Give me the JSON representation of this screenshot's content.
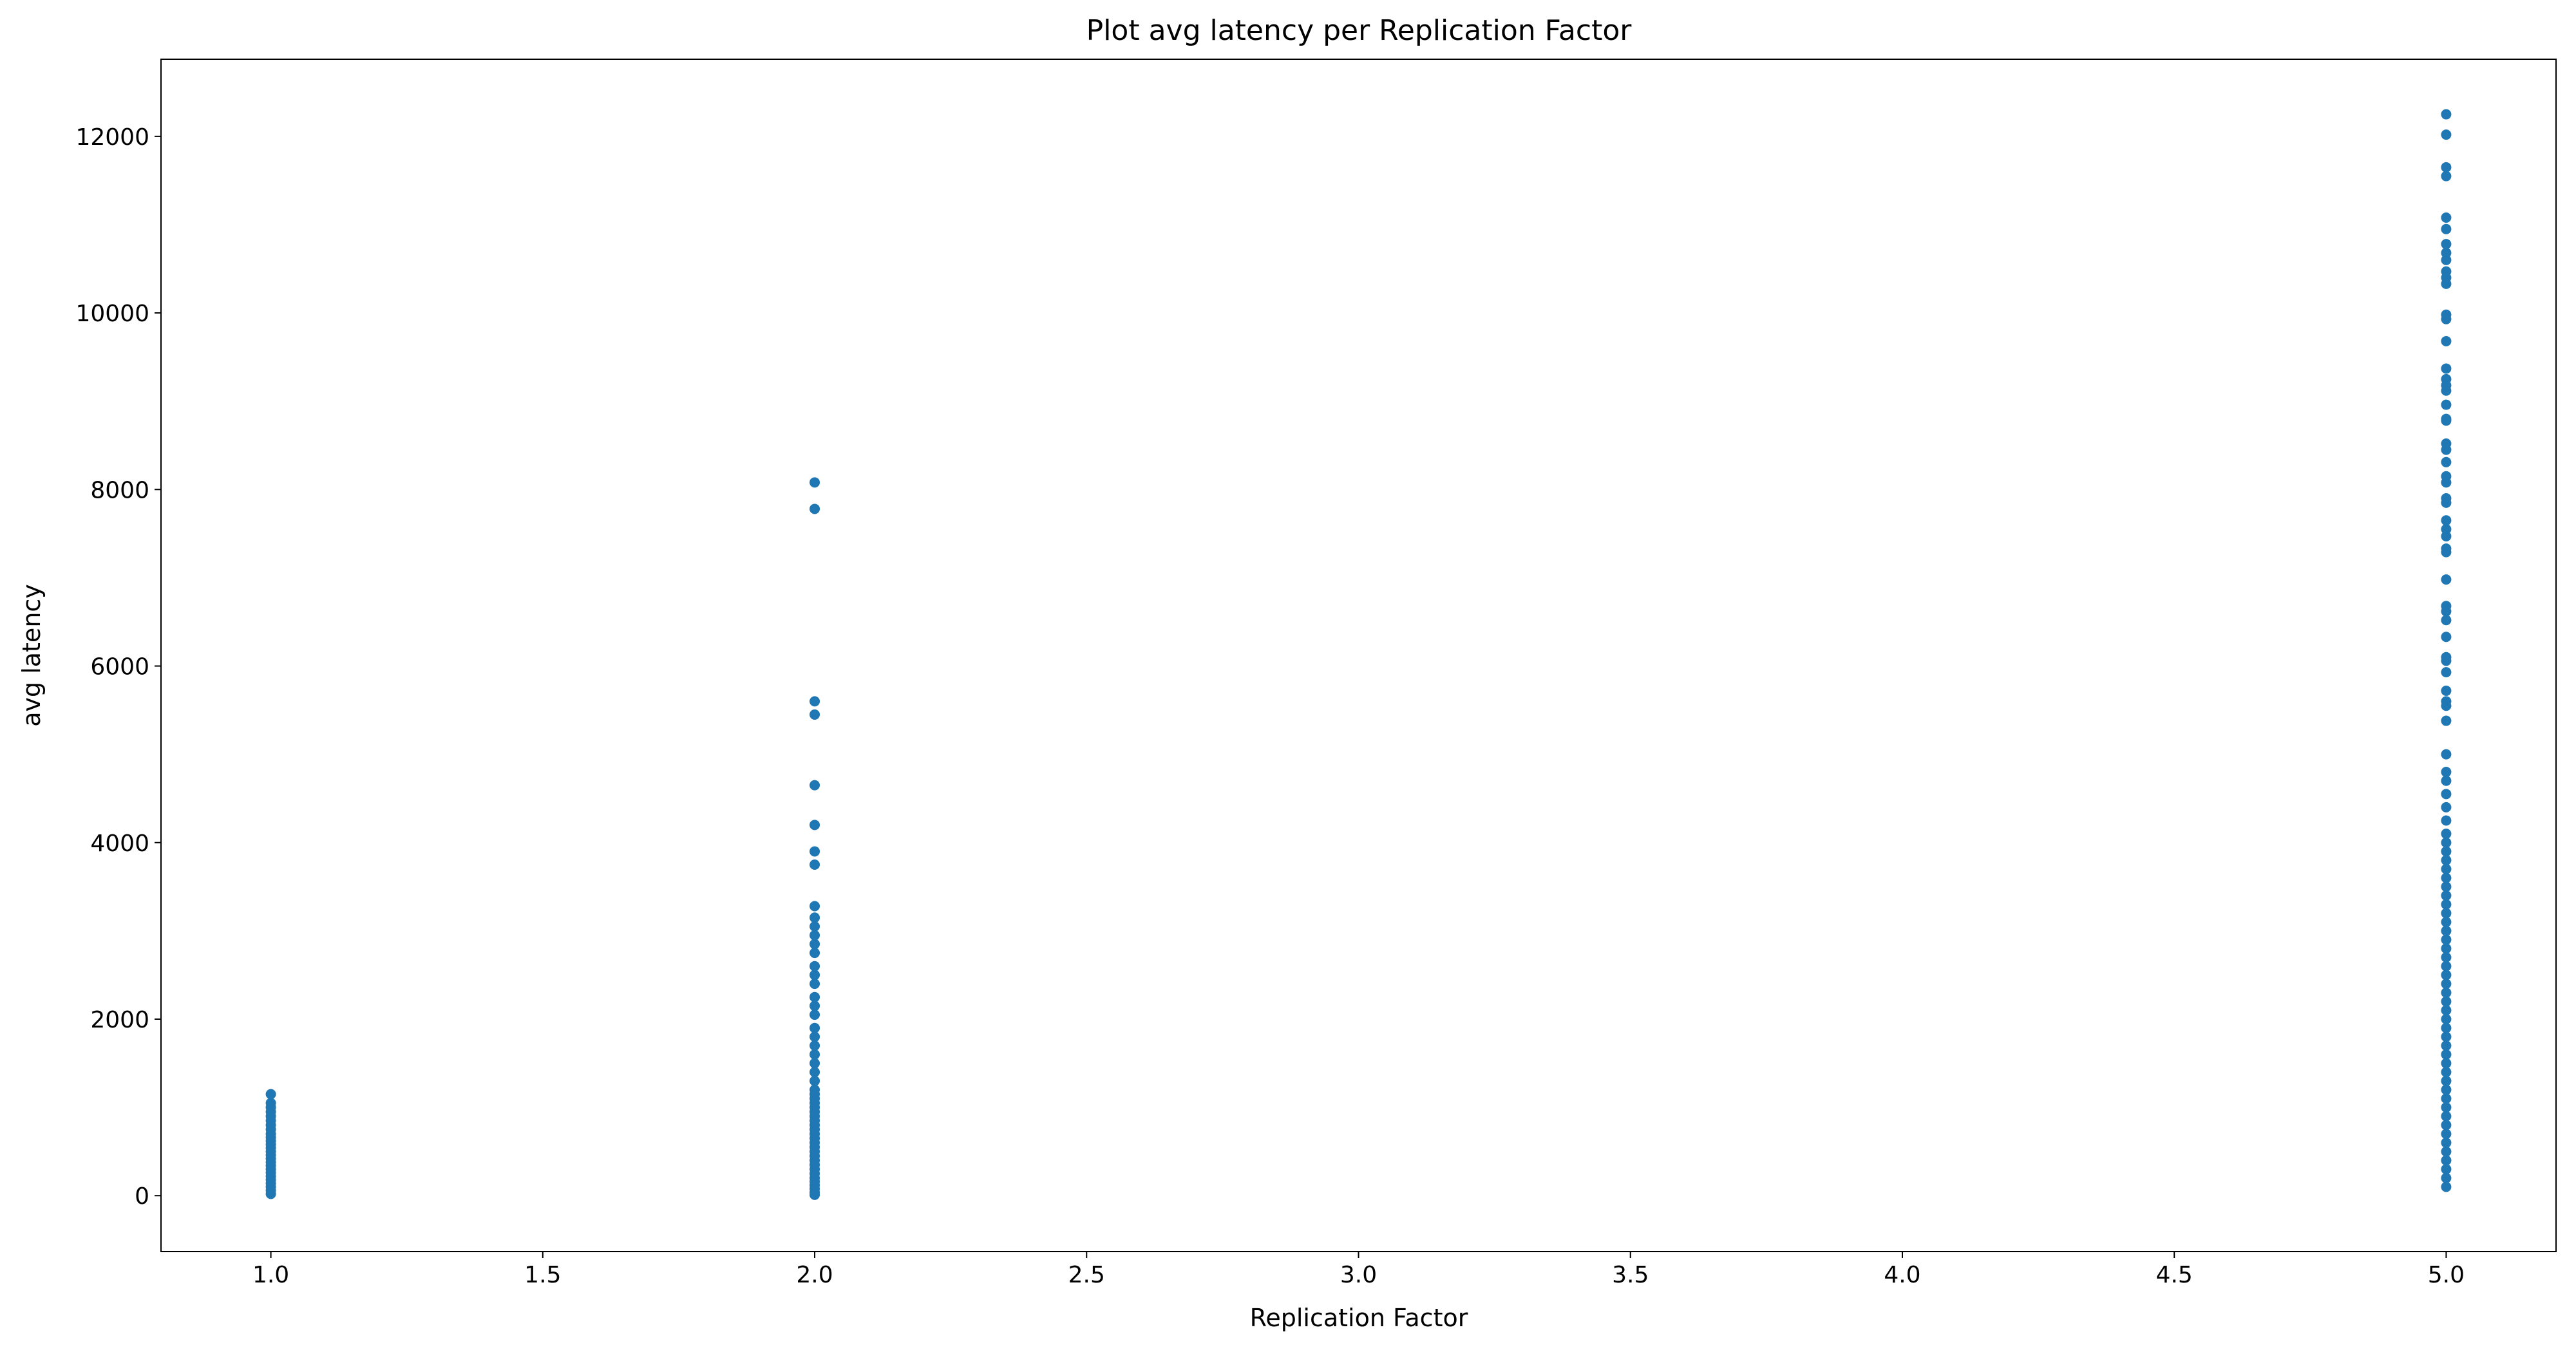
{
  "chart_data": {
    "type": "scatter",
    "title": "Plot avg latency per Replication Factor",
    "x_label": "Replication Factor",
    "y_label": "avg latency",
    "color": "#1f77b4",
    "xlim": [
      0.798,
      5.202
    ],
    "ylim": [
      -633,
      12874
    ],
    "xticks": [
      {
        "value": 1,
        "label": "1.0"
      },
      {
        "value": 1.5,
        "label": "1.5"
      },
      {
        "value": 2,
        "label": "2.0"
      },
      {
        "value": 2.5,
        "label": "2.5"
      },
      {
        "value": 3,
        "label": "3.0"
      },
      {
        "value": 3.5,
        "label": "3.5"
      },
      {
        "value": 4,
        "label": "4.0"
      },
      {
        "value": 4.5,
        "label": "4.5"
      },
      {
        "value": 5,
        "label": "5.0"
      }
    ],
    "yticks": [
      0,
      2000,
      4000,
      6000,
      8000,
      10000,
      12000
    ],
    "grid": false,
    "points": [
      [
        1,
        20
      ],
      [
        1,
        60
      ],
      [
        1,
        100
      ],
      [
        1,
        140
      ],
      [
        1,
        180
      ],
      [
        1,
        220
      ],
      [
        1,
        260
      ],
      [
        1,
        300
      ],
      [
        1,
        340
      ],
      [
        1,
        380
      ],
      [
        1,
        420
      ],
      [
        1,
        460
      ],
      [
        1,
        500
      ],
      [
        1,
        540
      ],
      [
        1,
        580
      ],
      [
        1,
        620
      ],
      [
        1,
        660
      ],
      [
        1,
        700
      ],
      [
        1,
        750
      ],
      [
        1,
        800
      ],
      [
        1,
        850
      ],
      [
        1,
        900
      ],
      [
        1,
        950
      ],
      [
        1,
        1000
      ],
      [
        1,
        1050
      ],
      [
        1,
        1150
      ],
      [
        2,
        10
      ],
      [
        2,
        40
      ],
      [
        2,
        80
      ],
      [
        2,
        120
      ],
      [
        2,
        160
      ],
      [
        2,
        200
      ],
      [
        2,
        250
      ],
      [
        2,
        300
      ],
      [
        2,
        350
      ],
      [
        2,
        400
      ],
      [
        2,
        450
      ],
      [
        2,
        500
      ],
      [
        2,
        550
      ],
      [
        2,
        600
      ],
      [
        2,
        650
      ],
      [
        2,
        700
      ],
      [
        2,
        750
      ],
      [
        2,
        800
      ],
      [
        2,
        850
      ],
      [
        2,
        900
      ],
      [
        2,
        950
      ],
      [
        2,
        1000
      ],
      [
        2,
        1050
      ],
      [
        2,
        1100
      ],
      [
        2,
        1150
      ],
      [
        2,
        1200
      ],
      [
        2,
        1300
      ],
      [
        2,
        1400
      ],
      [
        2,
        1500
      ],
      [
        2,
        1600
      ],
      [
        2,
        1700
      ],
      [
        2,
        1800
      ],
      [
        2,
        1900
      ],
      [
        2,
        2050
      ],
      [
        2,
        2150
      ],
      [
        2,
        2250
      ],
      [
        2,
        2400
      ],
      [
        2,
        2500
      ],
      [
        2,
        2600
      ],
      [
        2,
        2750
      ],
      [
        2,
        2850
      ],
      [
        2,
        2950
      ],
      [
        2,
        3050
      ],
      [
        2,
        3150
      ],
      [
        2,
        3280
      ],
      [
        2,
        3750
      ],
      [
        2,
        3900
      ],
      [
        2,
        4200
      ],
      [
        2,
        4650
      ],
      [
        2,
        5450
      ],
      [
        2,
        5600
      ],
      [
        2,
        7780
      ],
      [
        2,
        8080
      ],
      [
        5,
        100
      ],
      [
        5,
        200
      ],
      [
        5,
        300
      ],
      [
        5,
        400
      ],
      [
        5,
        500
      ],
      [
        5,
        600
      ],
      [
        5,
        700
      ],
      [
        5,
        800
      ],
      [
        5,
        900
      ],
      [
        5,
        1000
      ],
      [
        5,
        1100
      ],
      [
        5,
        1200
      ],
      [
        5,
        1300
      ],
      [
        5,
        1400
      ],
      [
        5,
        1500
      ],
      [
        5,
        1600
      ],
      [
        5,
        1700
      ],
      [
        5,
        1800
      ],
      [
        5,
        1900
      ],
      [
        5,
        2000
      ],
      [
        5,
        2100
      ],
      [
        5,
        2200
      ],
      [
        5,
        2300
      ],
      [
        5,
        2400
      ],
      [
        5,
        2500
      ],
      [
        5,
        2600
      ],
      [
        5,
        2700
      ],
      [
        5,
        2800
      ],
      [
        5,
        2900
      ],
      [
        5,
        3000
      ],
      [
        5,
        3100
      ],
      [
        5,
        3200
      ],
      [
        5,
        3300
      ],
      [
        5,
        3400
      ],
      [
        5,
        3500
      ],
      [
        5,
        3600
      ],
      [
        5,
        3700
      ],
      [
        5,
        3800
      ],
      [
        5,
        3900
      ],
      [
        5,
        4000
      ],
      [
        5,
        4100
      ],
      [
        5,
        4250
      ],
      [
        5,
        4400
      ],
      [
        5,
        4550
      ],
      [
        5,
        4700
      ],
      [
        5,
        4800
      ],
      [
        5,
        5000
      ],
      [
        5,
        5380
      ],
      [
        5,
        5550
      ],
      [
        5,
        5600
      ],
      [
        5,
        5720
      ],
      [
        5,
        5930
      ],
      [
        5,
        6060
      ],
      [
        5,
        6100
      ],
      [
        5,
        6330
      ],
      [
        5,
        6520
      ],
      [
        5,
        6620
      ],
      [
        5,
        6680
      ],
      [
        5,
        6980
      ],
      [
        5,
        7290
      ],
      [
        5,
        7330
      ],
      [
        5,
        7470
      ],
      [
        5,
        7550
      ],
      [
        5,
        7650
      ],
      [
        5,
        7850
      ],
      [
        5,
        7900
      ],
      [
        5,
        8080
      ],
      [
        5,
        8150
      ],
      [
        5,
        8310
      ],
      [
        5,
        8450
      ],
      [
        5,
        8520
      ],
      [
        5,
        8780
      ],
      [
        5,
        8800
      ],
      [
        5,
        8960
      ],
      [
        5,
        9120
      ],
      [
        5,
        9180
      ],
      [
        5,
        9250
      ],
      [
        5,
        9370
      ],
      [
        5,
        9680
      ],
      [
        5,
        9930
      ],
      [
        5,
        9980
      ],
      [
        5,
        10330
      ],
      [
        5,
        10400
      ],
      [
        5,
        10470
      ],
      [
        5,
        10600
      ],
      [
        5,
        10680
      ],
      [
        5,
        10780
      ],
      [
        5,
        10950
      ],
      [
        5,
        11080
      ],
      [
        5,
        11550
      ],
      [
        5,
        11650
      ],
      [
        5,
        12020
      ],
      [
        5,
        12250
      ]
    ]
  }
}
